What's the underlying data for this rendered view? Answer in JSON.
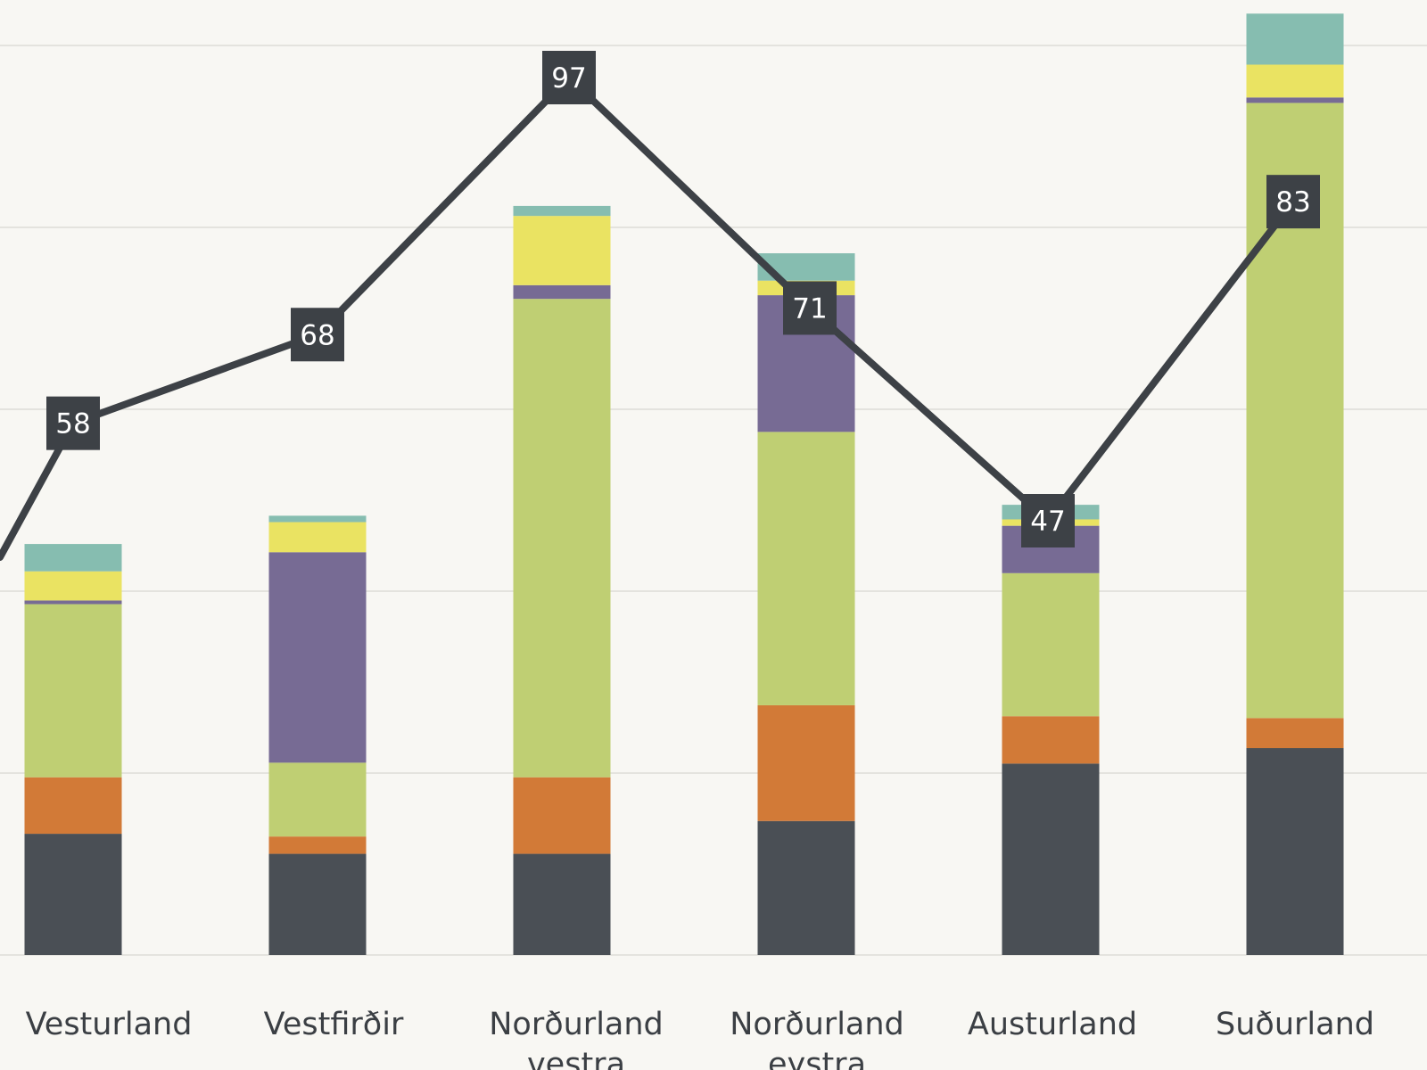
{
  "chart_data": {
    "type": "bar",
    "stacked": true,
    "categories": [
      "Vesturland",
      "Vestfirðir",
      "Norðurland vestra",
      "Norðurland eystra",
      "Austurland",
      "Suðurland"
    ],
    "category_lines": [
      [
        "Vesturland"
      ],
      [
        "Vestfirðir"
      ],
      [
        "Norðurland",
        "vestra"
      ],
      [
        "Norðurland",
        "eystra"
      ],
      [
        "Austurland"
      ],
      [
        "Suðurland"
      ]
    ],
    "series": [
      {
        "name": "Series 1",
        "color": "#4a4f55",
        "values": [
          13.3,
          11.1,
          11.1,
          14.7,
          21.0,
          22.7
        ]
      },
      {
        "name": "Series 2",
        "color": "#d27a37",
        "values": [
          6.2,
          1.9,
          8.4,
          12.7,
          5.2,
          3.3
        ]
      },
      {
        "name": "Series 3",
        "color": "#bfcf73",
        "values": [
          19.0,
          8.1,
          52.5,
          30.0,
          15.7,
          67.5
        ]
      },
      {
        "name": "Series 4",
        "color": "#776b94",
        "values": [
          0.4,
          23.1,
          1.5,
          15.0,
          5.2,
          0.6
        ]
      },
      {
        "name": "Series 5",
        "color": "#eae362",
        "values": [
          3.2,
          3.3,
          7.6,
          1.6,
          0.7,
          3.6
        ]
      },
      {
        "name": "Series 6",
        "color": "#86bdb0",
        "values": [
          3.0,
          0.7,
          1.1,
          3.0,
          1.6,
          5.6
        ]
      }
    ],
    "line_series": {
      "name": "Line",
      "color": "#3d4146",
      "values": [
        58,
        68,
        97,
        71,
        47,
        83
      ],
      "labels": [
        "58",
        "68",
        "97",
        "71",
        "47",
        "83"
      ],
      "ylim": [
        30,
        100
      ]
    },
    "ylim": [
      0,
      100
    ],
    "grid": true,
    "title": "",
    "xlabel": "",
    "ylabel": ""
  }
}
